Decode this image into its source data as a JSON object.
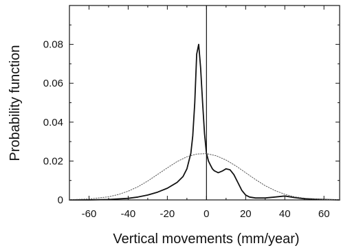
{
  "chart_data": {
    "type": "line",
    "title": "",
    "xlabel": "Vertical movements (mm/year)",
    "ylabel": "Probability function",
    "xlim": [
      -70,
      68
    ],
    "ylim": [
      0,
      0.1
    ],
    "x_ticks": [
      -60,
      -40,
      -20,
      0,
      20,
      40,
      60
    ],
    "x_tick_labels": [
      "-60",
      "-40",
      "-20",
      "0",
      "20",
      "40",
      "60"
    ],
    "y_ticks": [
      0,
      0.02,
      0.04,
      0.06,
      0.08
    ],
    "y_tick_labels": [
      "0",
      "0.02",
      "0.04",
      "0.06",
      "0.08"
    ],
    "vertical_reference_line_x": 0,
    "grid": false,
    "legend": "none",
    "series": [
      {
        "style": "solid",
        "color": "#111111",
        "x": [
          -70,
          -60,
          -50,
          -40,
          -35,
          -30,
          -25,
          -20,
          -15,
          -12,
          -10,
          -8,
          -7,
          -6,
          -5,
          -4,
          -3,
          -2,
          -1,
          0,
          1,
          2,
          3,
          4,
          5,
          6,
          8,
          10,
          12,
          14,
          16,
          18,
          20,
          22,
          25,
          30,
          35,
          40,
          45,
          50,
          60,
          68
        ],
        "y": [
          0,
          0,
          0.0002,
          0.0008,
          0.0015,
          0.0025,
          0.004,
          0.006,
          0.009,
          0.012,
          0.016,
          0.024,
          0.033,
          0.05,
          0.075,
          0.08,
          0.068,
          0.05,
          0.034,
          0.024,
          0.02,
          0.018,
          0.016,
          0.015,
          0.0145,
          0.014,
          0.0148,
          0.016,
          0.0155,
          0.013,
          0.009,
          0.005,
          0.0025,
          0.0015,
          0.001,
          0.001,
          0.0015,
          0.002,
          0.0012,
          0.0006,
          0.0002,
          0
        ]
      },
      {
        "style": "dotted",
        "color": "#555555",
        "x": [
          -70,
          -60,
          -50,
          -45,
          -40,
          -35,
          -30,
          -25,
          -20,
          -15,
          -10,
          -5,
          0,
          5,
          10,
          15,
          20,
          25,
          30,
          35,
          40,
          45,
          50,
          60,
          68
        ],
        "y": [
          0.0001,
          0.0005,
          0.0016,
          0.0028,
          0.0045,
          0.0068,
          0.0097,
          0.0131,
          0.0165,
          0.0197,
          0.0222,
          0.0236,
          0.0238,
          0.0227,
          0.0205,
          0.0175,
          0.014,
          0.0105,
          0.0073,
          0.0048,
          0.0029,
          0.0016,
          0.0009,
          0.0002,
          0.0001
        ]
      }
    ]
  }
}
